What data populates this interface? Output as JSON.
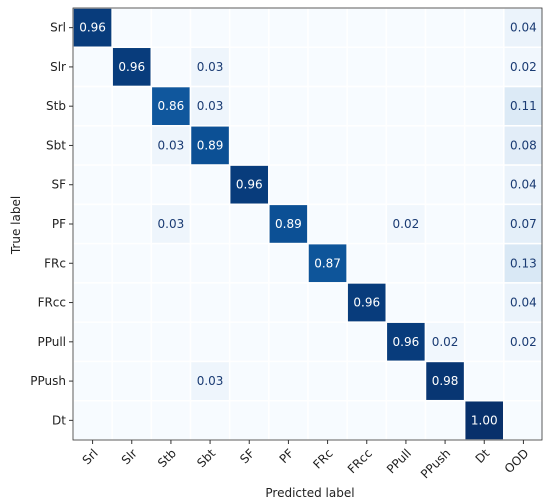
{
  "chart_data": {
    "type": "heatmap",
    "title": "",
    "xlabel": "Predicted label",
    "ylabel": "True label",
    "row_labels": [
      "Srl",
      "Slr",
      "Stb",
      "Sbt",
      "SF",
      "PF",
      "FRc",
      "FRcc",
      "PPull",
      "PPush",
      "Dt"
    ],
    "column_labels": [
      "Srl",
      "Slr",
      "Stb",
      "Sbt",
      "SF",
      "PF",
      "FRc",
      "FRcc",
      "PPull",
      "PPush",
      "Dt",
      "OOD"
    ],
    "values": [
      [
        0.96,
        null,
        null,
        null,
        null,
        null,
        null,
        null,
        null,
        null,
        null,
        0.04
      ],
      [
        null,
        0.96,
        null,
        0.03,
        null,
        null,
        null,
        null,
        null,
        null,
        null,
        0.02
      ],
      [
        null,
        null,
        0.86,
        0.03,
        null,
        null,
        null,
        null,
        null,
        null,
        null,
        0.11
      ],
      [
        null,
        null,
        0.03,
        0.89,
        null,
        null,
        null,
        null,
        null,
        null,
        null,
        0.08
      ],
      [
        null,
        null,
        null,
        null,
        0.96,
        null,
        null,
        null,
        null,
        null,
        null,
        0.04
      ],
      [
        null,
        null,
        0.03,
        null,
        null,
        0.89,
        null,
        null,
        0.02,
        null,
        null,
        0.07
      ],
      [
        null,
        null,
        null,
        null,
        null,
        null,
        0.87,
        null,
        null,
        null,
        null,
        0.13
      ],
      [
        null,
        null,
        null,
        null,
        null,
        null,
        null,
        0.96,
        null,
        null,
        null,
        0.04
      ],
      [
        null,
        null,
        null,
        null,
        null,
        null,
        null,
        null,
        0.96,
        0.02,
        null,
        0.02
      ],
      [
        null,
        null,
        null,
        0.03,
        null,
        null,
        null,
        null,
        null,
        0.98,
        null,
        null
      ],
      [
        null,
        null,
        null,
        null,
        null,
        null,
        null,
        null,
        null,
        null,
        1.0,
        null
      ]
    ],
    "value_range": [
      0,
      1
    ],
    "colors": {
      "low": "#f7fbff",
      "high": "#08306b",
      "text_on_dark": "#ffffff",
      "text_on_light": "#1a3b73"
    },
    "grid": true,
    "legend": "none"
  }
}
